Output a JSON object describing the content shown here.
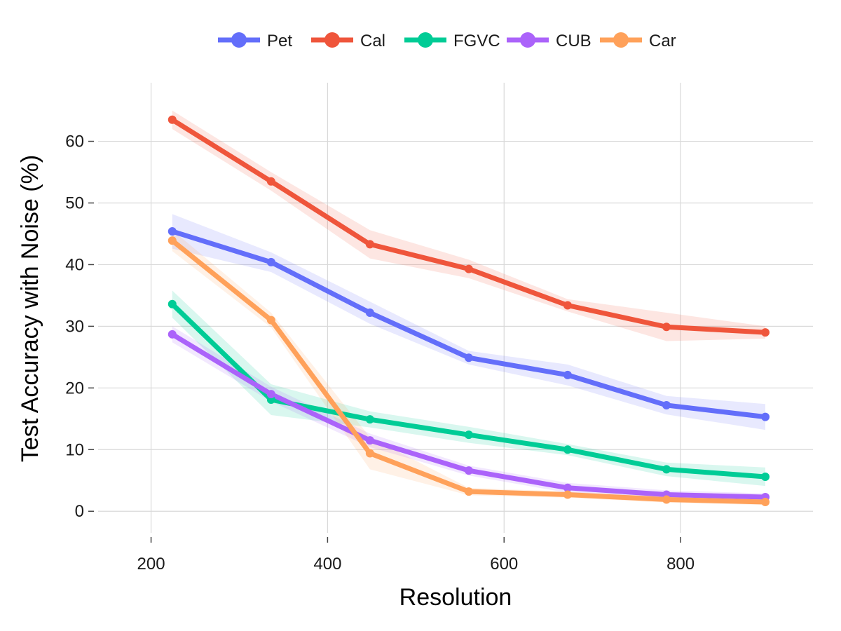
{
  "chart_data": {
    "type": "line",
    "xlabel": "Resolution",
    "ylabel": "Test Accuracy with Noise (%)",
    "xlim": [
      140,
      950
    ],
    "ylim": [
      -3.5,
      69.5
    ],
    "x_ticks": [
      200,
      400,
      600,
      800
    ],
    "y_ticks": [
      0,
      10,
      20,
      30,
      40,
      50,
      60
    ],
    "grid": true,
    "legend_position": "top-center",
    "x": [
      224,
      336,
      448,
      560,
      672,
      784,
      896
    ],
    "series": [
      {
        "name": "Pet",
        "color": "#636efa",
        "values": [
          45.4,
          40.4,
          32.2,
          24.9,
          22.1,
          17.2,
          15.3
        ],
        "upper": [
          48.2,
          42.0,
          34.0,
          26.0,
          23.8,
          18.7,
          17.4
        ],
        "lower": [
          42.6,
          38.8,
          30.4,
          23.8,
          20.4,
          15.7,
          13.2
        ]
      },
      {
        "name": "Cal",
        "color": "#ef553b",
        "values": [
          63.5,
          53.5,
          43.3,
          39.3,
          33.4,
          29.9,
          29.0
        ],
        "upper": [
          65.0,
          55.0,
          45.6,
          40.8,
          34.4,
          32.2,
          30.0
        ],
        "lower": [
          62.0,
          52.0,
          41.0,
          37.8,
          32.4,
          27.6,
          28.0
        ]
      },
      {
        "name": "FGVC",
        "color": "#00cc96",
        "values": [
          33.6,
          18.1,
          14.9,
          12.4,
          10.0,
          6.8,
          5.6
        ],
        "upper": [
          35.8,
          20.6,
          16.2,
          13.7,
          10.9,
          7.9,
          7.1
        ],
        "lower": [
          31.4,
          15.6,
          13.6,
          11.1,
          9.1,
          5.7,
          4.1
        ]
      },
      {
        "name": "CUB",
        "color": "#ab63fa",
        "values": [
          28.7,
          19.0,
          11.5,
          6.6,
          3.8,
          2.7,
          2.3
        ],
        "upper": [
          30.0,
          20.2,
          12.6,
          7.4,
          4.6,
          3.4,
          2.9
        ],
        "lower": [
          27.4,
          17.8,
          10.4,
          5.8,
          3.0,
          2.0,
          1.7
        ]
      },
      {
        "name": "Car",
        "color": "#ffa15a",
        "values": [
          43.9,
          31.0,
          9.4,
          3.2,
          2.7,
          1.9,
          1.5
        ],
        "upper": [
          45.6,
          32.2,
          12.0,
          3.8,
          3.2,
          2.4,
          2.0
        ],
        "lower": [
          42.2,
          29.8,
          6.8,
          2.6,
          2.2,
          1.4,
          1.0
        ]
      }
    ]
  }
}
